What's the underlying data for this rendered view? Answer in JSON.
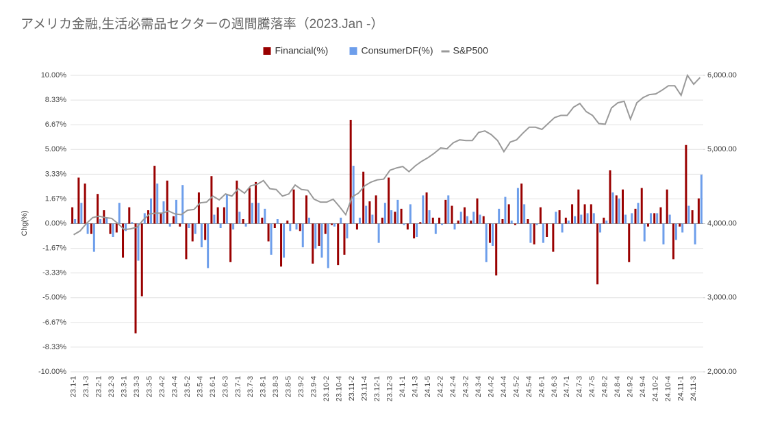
{
  "chart_data": {
    "type": "bar_line",
    "title": "アメリカ金融,生活必需品セクターの週間騰落率（2023.Jan -）",
    "y_label": "Chg(%)",
    "categories": [
      "23.1-1",
      null,
      "23.1-3",
      null,
      "23.2-1",
      null,
      "23.2-3",
      null,
      "23.3-1",
      null,
      "23.3-3",
      null,
      "23.3-5",
      null,
      "23.4-2",
      null,
      "23.4-4",
      null,
      "23.5-2",
      null,
      "23.5-4",
      null,
      "23.6-1",
      null,
      "23.6-3",
      null,
      "23.7-1",
      null,
      "23.7-3",
      null,
      "23.8-1",
      null,
      "23.8-3",
      null,
      "23.8-5",
      null,
      "23.9-2",
      null,
      "23.9-4",
      null,
      "23.10-2",
      null,
      "23.10-4",
      null,
      "23.11-2",
      null,
      "23.11-4",
      null,
      "23.12-1",
      null,
      "23.12-3",
      null,
      "24.1-1",
      null,
      "24.1-3",
      null,
      "24.1-5",
      null,
      "24.2-2",
      null,
      "24.2-4",
      null,
      "24.3-2",
      null,
      "24.3-4",
      null,
      "24.4-2",
      null,
      "24.4-4",
      null,
      "24.5-2",
      null,
      "24.5-4",
      null,
      "24.6-1",
      null,
      "24.6-3",
      null,
      "24.7-1",
      null,
      "24.7-3",
      null,
      "24.7-5",
      null,
      "24.8-2",
      null,
      "24.8-4",
      null,
      "24.9-2",
      null,
      "24.9-4",
      null,
      "24.10-2",
      null,
      "24.10-4",
      null,
      "24.11-1",
      null,
      "24.11-3",
      null
    ],
    "series": [
      {
        "name": "Financial(%)",
        "color": "#990000",
        "kind": "bar",
        "values": [
          1.1,
          3.1,
          2.7,
          -0.7,
          2.0,
          0.9,
          -0.7,
          -0.6,
          -2.3,
          1.1,
          -7.4,
          -4.9,
          0.9,
          3.9,
          0.7,
          2.9,
          0.5,
          -0.2,
          -2.4,
          -1.2,
          2.1,
          -1.1,
          3.2,
          1.1,
          1.1,
          -2.6,
          2.9,
          0.3,
          2.4,
          2.8,
          0.4,
          -1.2,
          -0.3,
          -2.9,
          0.2,
          2.3,
          -0.5,
          1.9,
          -2.7,
          -1.5,
          -0.7,
          -0.1,
          -2.8,
          -2.1,
          7.0,
          -0.4,
          3.5,
          1.5,
          1.9,
          0.4,
          3.1,
          0.8,
          1.0,
          -0.4,
          -1.0,
          0.1,
          2.1,
          0.4,
          0.4,
          1.6,
          1.2,
          0.2,
          1.1,
          0.2,
          1.7,
          0.5,
          -1.3,
          -3.5,
          0.3,
          1.3,
          -0.1,
          2.7,
          0.3,
          -1.4,
          1.1,
          -0.9,
          -1.9,
          0.9,
          0.4,
          1.3,
          2.3,
          1.3,
          1.3,
          -4.1,
          0.4,
          3.6,
          1.9,
          2.3,
          -2.6,
          1.0,
          2.4,
          -0.2,
          0.7,
          1.1,
          2.3,
          -2.4,
          -0.2,
          5.3,
          0.9,
          1.7
        ]
      },
      {
        "name": "ConsumerDF(%)",
        "color": "#6d9eeb",
        "kind": "bar",
        "values": [
          0.3,
          1.4,
          -0.7,
          -1.9,
          0.3,
          0.4,
          -0.9,
          1.4,
          -0.5,
          0.1,
          -2.5,
          0.7,
          1.7,
          2.7,
          1.5,
          -0.2,
          1.6,
          2.6,
          -0.3,
          -0.7,
          -1.6,
          -3.0,
          0.6,
          -0.3,
          2.0,
          -0.4,
          0.8,
          -0.2,
          1.4,
          1.4,
          1.0,
          -2.1,
          0.3,
          -2.3,
          -0.5,
          -0.4,
          -1.6,
          0.4,
          -1.7,
          -2.3,
          -3.0,
          -0.2,
          0.4,
          -1.0,
          3.9,
          0.4,
          1.2,
          0.6,
          -1.3,
          1.4,
          0.9,
          1.6,
          -0.1,
          1.3,
          -0.9,
          1.9,
          0.9,
          -0.7,
          -0.1,
          1.9,
          -0.4,
          0.8,
          0.5,
          0.8,
          0.6,
          -2.6,
          -1.5,
          1.0,
          1.8,
          0.2,
          2.4,
          1.3,
          -1.3,
          -0.1,
          -1.3,
          0.0,
          0.8,
          -0.6,
          0.2,
          0.5,
          0.6,
          0.7,
          0.7,
          -0.6,
          0.2,
          2.1,
          1.7,
          0.6,
          0.7,
          1.4,
          -1.2,
          0.7,
          0.7,
          -1.4,
          0.6,
          -1.1,
          -0.6,
          1.2,
          -1.4,
          3.3
        ]
      },
      {
        "name": "S&P500",
        "color": "#999999",
        "kind": "line",
        "axis": "y2",
        "values": [
          3850,
          3900,
          4000,
          4080,
          4100,
          4080,
          4070,
          4000,
          3920,
          3930,
          3950,
          4050,
          4130,
          4140,
          4140,
          4170,
          4130,
          4120,
          4180,
          4190,
          4280,
          4290,
          4370,
          4320,
          4400,
          4370,
          4470,
          4410,
          4510,
          4530,
          4580,
          4470,
          4460,
          4370,
          4400,
          4520,
          4460,
          4450,
          4330,
          4290,
          4290,
          4330,
          4230,
          4120,
          4360,
          4410,
          4510,
          4560,
          4590,
          4600,
          4720,
          4750,
          4770,
          4700,
          4780,
          4840,
          4890,
          4950,
          5020,
          5010,
          5090,
          5130,
          5120,
          5120,
          5230,
          5250,
          5200,
          5120,
          4970,
          5100,
          5130,
          5220,
          5300,
          5300,
          5270,
          5350,
          5430,
          5460,
          5460,
          5570,
          5620,
          5510,
          5460,
          5350,
          5340,
          5560,
          5630,
          5650,
          5410,
          5630,
          5700,
          5740,
          5750,
          5800,
          5860,
          5860,
          5730,
          6000,
          5880,
          5970
        ]
      }
    ],
    "ylim": [
      -10,
      10
    ],
    "yticks": [
      {
        "value": 10,
        "label": "10.00%"
      },
      {
        "value": 8.33,
        "label": "8.33%"
      },
      {
        "value": 6.67,
        "label": "6.67%"
      },
      {
        "value": 5,
        "label": "5.00%"
      },
      {
        "value": 3.33,
        "label": "3.33%"
      },
      {
        "value": 1.67,
        "label": "1.67%"
      },
      {
        "value": 0,
        "label": "0.00%"
      },
      {
        "value": -1.67,
        "label": "-1.67%"
      },
      {
        "value": -3.33,
        "label": "-3.33%"
      },
      {
        "value": -5,
        "label": "-5.00%"
      },
      {
        "value": -6.67,
        "label": "-6.67%"
      },
      {
        "value": -8.33,
        "label": "-8.33%"
      },
      {
        "value": -10,
        "label": "-10.00%"
      }
    ],
    "y2lim": [
      2000,
      6000
    ],
    "y2ticks": [
      {
        "value": 6000,
        "label": "6,000.00"
      },
      {
        "value": 5000,
        "label": "5,000.00"
      },
      {
        "value": 4000,
        "label": "4,000.00"
      },
      {
        "value": 3000,
        "label": "3,000.00"
      },
      {
        "value": 2000,
        "label": "2,000.00"
      }
    ],
    "grid": true,
    "legend": "top"
  }
}
